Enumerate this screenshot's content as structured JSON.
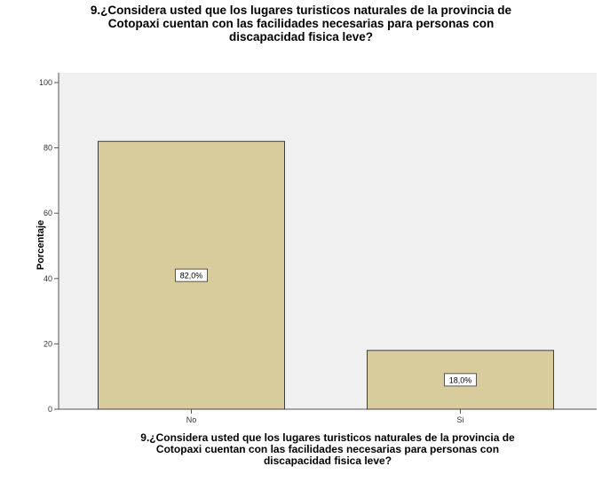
{
  "chart_data": {
    "type": "bar",
    "title_lines": [
      "9.¿Considera usted que los lugares turisticos naturales de la provincia de",
      "Cotopaxi cuentan con las facilidades necesarias para personas con",
      "discapacidad fisica leve?"
    ],
    "xlabel_lines": [
      "9.¿Considera usted que los lugares turisticos naturales de la provincia de",
      "Cotopaxi cuentan con las facilidades necesarias para personas con",
      "discapacidad fisica leve?"
    ],
    "ylabel": "Porcentaje",
    "categories": [
      "No",
      "Si"
    ],
    "values": [
      82.0,
      18.0
    ],
    "data_labels": [
      "82,0%",
      "18,0%"
    ],
    "ylim": [
      0,
      100
    ],
    "yticks": [
      0,
      20,
      40,
      60,
      80,
      100
    ],
    "grid": false,
    "colors": {
      "bar_fill": "#d8cc9c",
      "bar_stroke": "#404040",
      "plot_bg": "#f0f0f0"
    }
  }
}
